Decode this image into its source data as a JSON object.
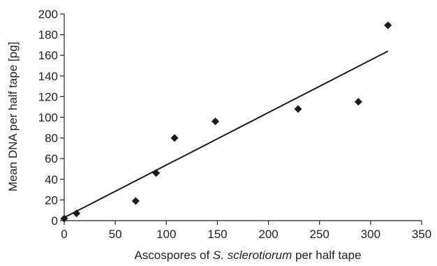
{
  "chart_data": {
    "type": "scatter",
    "title": "",
    "xlabel_parts": [
      {
        "text": "Ascospores of ",
        "italic": false
      },
      {
        "text": "S. sclerotiorum",
        "italic": true
      },
      {
        "text": " per half tape",
        "italic": false
      }
    ],
    "ylabel": "Mean DNA per half tape [pg]",
    "xlim": [
      0,
      350
    ],
    "ylim": [
      0,
      200
    ],
    "xticks": [
      0,
      50,
      100,
      150,
      200,
      250,
      300,
      350
    ],
    "yticks": [
      0,
      20,
      40,
      60,
      80,
      100,
      120,
      140,
      160,
      180,
      200
    ],
    "xtick_labels": [
      "0",
      "50",
      "100",
      "150",
      "200",
      "250",
      "300",
      "350"
    ],
    "ytick_labels": [
      "0",
      "20",
      "40",
      "60",
      "80",
      "100",
      "120",
      "140",
      "160",
      "180",
      "200"
    ],
    "grid": false,
    "marker": "diamond",
    "points": [
      {
        "x": 0,
        "y": 2
      },
      {
        "x": 12,
        "y": 7
      },
      {
        "x": 70,
        "y": 19
      },
      {
        "x": 90,
        "y": 46
      },
      {
        "x": 108,
        "y": 80
      },
      {
        "x": 148,
        "y": 96
      },
      {
        "x": 229,
        "y": 108
      },
      {
        "x": 288,
        "y": 115
      },
      {
        "x": 317,
        "y": 189
      }
    ],
    "trendline": {
      "type": "linear",
      "x": [
        0,
        317
      ],
      "y": [
        3,
        164
      ]
    },
    "colors": {
      "marker": "#1a1a1a",
      "line": "#1a1a1a",
      "axis": "#222222"
    }
  }
}
